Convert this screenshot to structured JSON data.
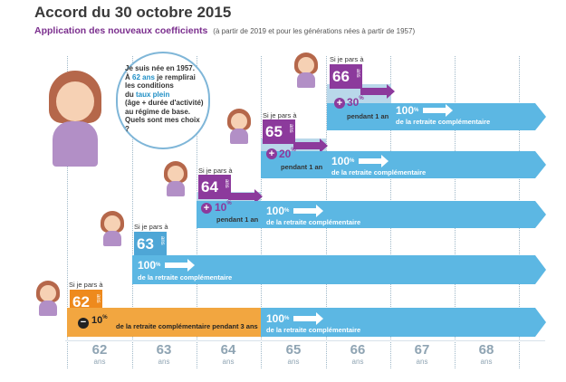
{
  "title": "Accord du 30 octobre 2015",
  "subtitle": "Application des nouveaux coefficients",
  "subtitle_note": "(à partir de 2019 et pour les générations nées à partir de 1957)",
  "bubble": {
    "line1": "Je suis née en 1957.",
    "line2a": "À ",
    "line2b": "62 ans",
    "line2c": " je remplirai",
    "line3": "les conditions",
    "line4a": "du ",
    "line4b": "taux plein",
    "line5": "(âge + durée d'activité)",
    "line6": "au régime de base.",
    "line7": "Quels sont mes choix ?"
  },
  "common": {
    "si_je_pars": "Si je pars à",
    "ans": "ans",
    "pct100": "100",
    "pct_sign": "%",
    "retraite": "de la retraite complémentaire",
    "pendant": "pendant 1 an"
  },
  "scenarios": {
    "s66": {
      "age": "66",
      "bonus": "30"
    },
    "s65": {
      "age": "65",
      "bonus": "20"
    },
    "s64": {
      "age": "64",
      "bonus": "10"
    },
    "s63": {
      "age": "63"
    },
    "s62": {
      "age": "62",
      "malus": "10",
      "malus_text": "de la retraite complémentaire pendant 3 ans"
    }
  },
  "years": [
    "62",
    "63",
    "64",
    "65",
    "66",
    "67",
    "68"
  ],
  "colors": {
    "purple": "#8c3a9c",
    "blue": "#5cb7e3",
    "orange": "#ee8a1d"
  }
}
